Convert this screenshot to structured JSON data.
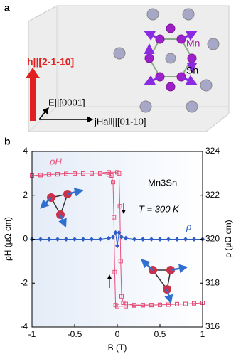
{
  "panel_a": {
    "label": "a",
    "h_axis": "h||[2-1-10]",
    "e_axis": "E||[0001]",
    "j_axis": "jHall||[01-10]",
    "mn": "Mn",
    "sn": "Sn"
  },
  "chart_data": {
    "type": "line",
    "panel_label": "b",
    "x_label": "B (T)",
    "y_label": "ρH (μΩ cm)",
    "y2_label": "ρ (μΩ cm)",
    "annotations": [
      "Mn3Sn",
      "T = 300 K"
    ],
    "xlim": [
      -1,
      1
    ],
    "xticks": [
      -1,
      -0.5,
      0,
      0.5,
      1
    ],
    "ylim": [
      -4,
      4
    ],
    "yticks": [
      -4,
      -2,
      0,
      2,
      4
    ],
    "y2lim": [
      316,
      324
    ],
    "y2ticks": [
      316,
      318,
      320,
      322,
      324
    ],
    "series": [
      {
        "name": "ρH",
        "color": "#e8507a",
        "marker": "square",
        "x": [
          -1,
          -0.9,
          -0.8,
          -0.7,
          -0.6,
          -0.5,
          -0.4,
          -0.3,
          -0.2,
          -0.1,
          0,
          0.02,
          0.03,
          0.04,
          0.05,
          0.07,
          0.1,
          0.2,
          0.3,
          0.4,
          0.5,
          0.6,
          0.7,
          0.8,
          0.9,
          1,
          0.9,
          0.8,
          0.7,
          0.6,
          0.5,
          0.4,
          0.3,
          0.2,
          0.1,
          0,
          -0.02,
          -0.03,
          -0.04,
          -0.05,
          -0.07,
          -0.1,
          -0.2,
          -0.3,
          -0.4,
          -0.5,
          -0.6,
          -0.7,
          -0.8,
          -0.9,
          -1
        ],
        "values": [
          2.9,
          2.92,
          2.95,
          2.96,
          2.98,
          2.99,
          3.0,
          3.01,
          3.02,
          3.05,
          3.05,
          3.0,
          1.5,
          -1.0,
          -2.6,
          -2.9,
          -2.95,
          -3.0,
          -3.0,
          -3.0,
          -2.99,
          -2.98,
          -2.96,
          -2.95,
          -2.92,
          -2.9,
          -2.92,
          -2.95,
          -2.96,
          -2.98,
          -2.99,
          -3.0,
          -3.01,
          -3.02,
          -3.05,
          -3.05,
          -3.0,
          -1.5,
          1.0,
          2.6,
          2.9,
          2.95,
          3.0,
          3.0,
          3.0,
          2.99,
          2.98,
          2.96,
          2.95,
          2.92,
          2.9
        ]
      },
      {
        "name": "ρ",
        "color": "#2f5fc4",
        "marker": "diamond",
        "axis": "y2",
        "x": [
          -1,
          -0.9,
          -0.8,
          -0.7,
          -0.6,
          -0.5,
          -0.4,
          -0.3,
          -0.2,
          -0.1,
          -0.05,
          -0.02,
          0,
          0.02,
          0.05,
          0.1,
          0.2,
          0.3,
          0.4,
          0.5,
          0.6,
          0.7,
          0.8,
          0.9,
          1
        ],
        "values": [
          320,
          320,
          320,
          320,
          320,
          320,
          320,
          320,
          320,
          320.05,
          320.1,
          320.3,
          319.7,
          320.3,
          320.1,
          320.05,
          320,
          320,
          320,
          320,
          320,
          320,
          320,
          320,
          320
        ]
      }
    ]
  }
}
